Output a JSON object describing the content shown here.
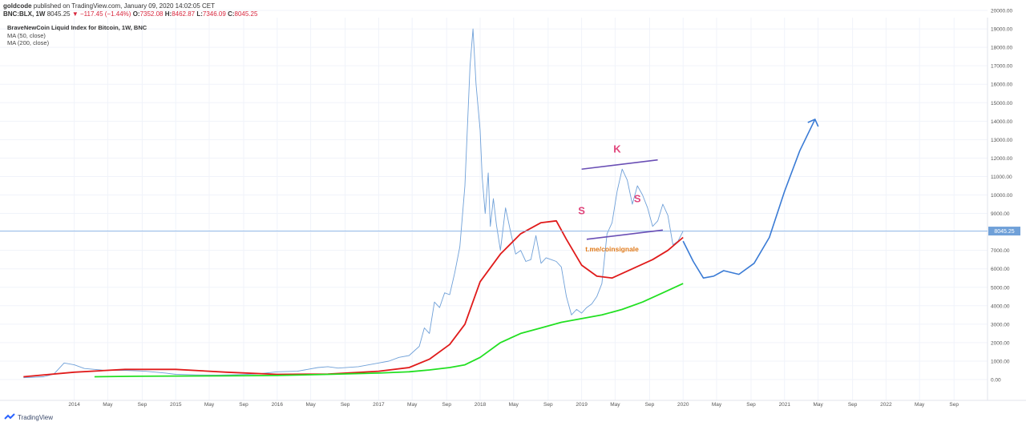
{
  "header": {
    "author": "goldcode",
    "published_text": "published on TradingView.com, January 09, 2020 14:02:05 CET",
    "symbol_line": "BNC:BLX, 1W",
    "last": "8045.25",
    "change_arrow": "▼",
    "change": "−117.45 (−1.44%)",
    "o_label": "O:",
    "o_value": "7352.08",
    "h_label": "H:",
    "h_value": "8462.87",
    "l_label": "L:",
    "l_value": "7346.09",
    "c_label": "C:",
    "c_value": "8045.25"
  },
  "legend": {
    "title": "BraveNewCoin Liquid Index for Bitcoin, 1W, BNC",
    "ma1": "MA (50, close)",
    "ma2": "MA (200, close)"
  },
  "annotations": {
    "k": "K",
    "s_left": "S",
    "s_right": "S",
    "watermark_text": "t.me/coinsignale"
  },
  "price_tag": "8045.25",
  "footer": {
    "brand": "TradingView"
  },
  "colors": {
    "price": "#6fa0d8",
    "ma50": "#e01b1b",
    "ma200": "#22e022",
    "projection": "#3a7bd5",
    "trendline": "#6a4fb5",
    "pattern_letters": "#e0457b",
    "watermark": "#e07a1a",
    "price_line": "#8ab4e6"
  },
  "chart_data": {
    "type": "line",
    "title": "BraveNewCoin Liquid Index for Bitcoin, 1W, BNC",
    "y_axis_labels": [
      "20000.00",
      "19000.00",
      "18000.00",
      "17000.00",
      "16000.00",
      "15000.00",
      "14000.00",
      "13000.00",
      "12000.00",
      "11000.00",
      "10000.00",
      "9000.00",
      "8000.00",
      "7000.00",
      "6000.00",
      "5000.00",
      "4000.00",
      "3000.00",
      "2000.00",
      "1000.00",
      "0.00"
    ],
    "ylim": [
      0,
      20000
    ],
    "x_axis_labels": [
      "2014",
      "May",
      "Sep",
      "2015",
      "May",
      "Sep",
      "2016",
      "May",
      "Sep",
      "2017",
      "May",
      "Sep",
      "2018",
      "May",
      "Sep",
      "2019",
      "May",
      "Sep",
      "2020",
      "May",
      "Sep",
      "2021",
      "May",
      "Sep",
      "2022",
      "May",
      "Sep"
    ],
    "grid": true,
    "series": [
      {
        "name": "",
        "role": "price",
        "x": [
          2013.5,
          2013.7,
          2013.8,
          2013.9,
          2014.0,
          2014.1,
          2014.2,
          2014.3,
          2014.5,
          2014.7,
          2014.9,
          2015.0,
          2015.2,
          2015.4,
          2015.6,
          2015.8,
          2016.0,
          2016.2,
          2016.4,
          2016.5,
          2016.6,
          2016.8,
          2017.0,
          2017.1,
          2017.2,
          2017.3,
          2017.4,
          2017.45,
          2017.5,
          2017.55,
          2017.6,
          2017.65,
          2017.7,
          2017.75,
          2017.8,
          2017.85,
          2017.9,
          2017.93,
          2017.96,
          2018.0,
          2018.02,
          2018.05,
          2018.08,
          2018.1,
          2018.13,
          2018.16,
          2018.2,
          2018.25,
          2018.3,
          2018.35,
          2018.4,
          2018.45,
          2018.5,
          2018.55,
          2018.6,
          2018.65,
          2018.7,
          2018.75,
          2018.8,
          2018.85,
          2018.9,
          2018.95,
          2019.0,
          2019.05,
          2019.1,
          2019.15,
          2019.2,
          2019.25,
          2019.3,
          2019.35,
          2019.4,
          2019.45,
          2019.5,
          2019.55,
          2019.6,
          2019.65,
          2019.7,
          2019.75,
          2019.8,
          2019.85,
          2019.9,
          2019.95,
          2020.0
        ],
        "y": [
          100,
          150,
          300,
          900,
          800,
          600,
          550,
          500,
          500,
          450,
          350,
          280,
          250,
          240,
          260,
          300,
          420,
          450,
          650,
          700,
          620,
          700,
          900,
          1000,
          1200,
          1300,
          1800,
          2800,
          2500,
          4200,
          3900,
          4700,
          4600,
          5800,
          7200,
          10500,
          17000,
          19000,
          16000,
          13500,
          11000,
          9000,
          11200,
          8300,
          9800,
          8400,
          7000,
          9300,
          8000,
          6800,
          7000,
          6400,
          6500,
          7800,
          6300,
          6600,
          6500,
          6400,
          6100,
          4500,
          3500,
          3800,
          3600,
          3900,
          4100,
          4500,
          5200,
          7900,
          8500,
          10200,
          11400,
          10800,
          9500,
          10500,
          10000,
          9300,
          8300,
          8600,
          9500,
          8900,
          7300,
          7500,
          8045
        ]
      },
      {
        "name": "MA (50, close)",
        "x": [
          2013.5,
          2014.0,
          2014.5,
          2015.0,
          2015.5,
          2016.0,
          2016.5,
          2017.0,
          2017.3,
          2017.5,
          2017.7,
          2017.85,
          2018.0,
          2018.2,
          2018.4,
          2018.6,
          2018.75,
          2018.85,
          2019.0,
          2019.15,
          2019.3,
          2019.5,
          2019.7,
          2019.85,
          2020.0
        ],
        "y": [
          150,
          400,
          550,
          550,
          400,
          280,
          300,
          450,
          650,
          1100,
          1900,
          3000,
          5300,
          6800,
          7900,
          8500,
          8600,
          7600,
          6200,
          5600,
          5500,
          6000,
          6500,
          7000,
          7700
        ]
      },
      {
        "name": "MA (200, close)",
        "x": [
          2014.2,
          2014.6,
          2015.0,
          2015.5,
          2016.0,
          2016.5,
          2017.0,
          2017.3,
          2017.5,
          2017.7,
          2017.85,
          2018.0,
          2018.2,
          2018.4,
          2018.6,
          2018.8,
          2019.0,
          2019.2,
          2019.4,
          2019.6,
          2019.8,
          2020.0
        ],
        "y": [
          150,
          180,
          190,
          200,
          220,
          280,
          350,
          420,
          520,
          650,
          800,
          1200,
          2000,
          2500,
          2800,
          3100,
          3300,
          3500,
          3800,
          4200,
          4700,
          5200
        ]
      }
    ],
    "drawings": {
      "projection_path": {
        "x": [
          2020.0,
          2020.1,
          2020.2,
          2020.3,
          2020.4,
          2020.55,
          2020.7,
          2020.85,
          2021.0,
          2021.15,
          2021.3
        ],
        "y": [
          7500,
          6400,
          5500,
          5600,
          5900,
          5700,
          6300,
          7700,
          10200,
          12400,
          14100
        ]
      },
      "neckline": {
        "x": [
          2019.05,
          2019.8
        ],
        "y": [
          7600,
          8100
        ]
      },
      "top_line": {
        "x": [
          2019.0,
          2019.75
        ],
        "y": [
          11400,
          11900
        ]
      },
      "last_price_line": 8045.25
    }
  }
}
